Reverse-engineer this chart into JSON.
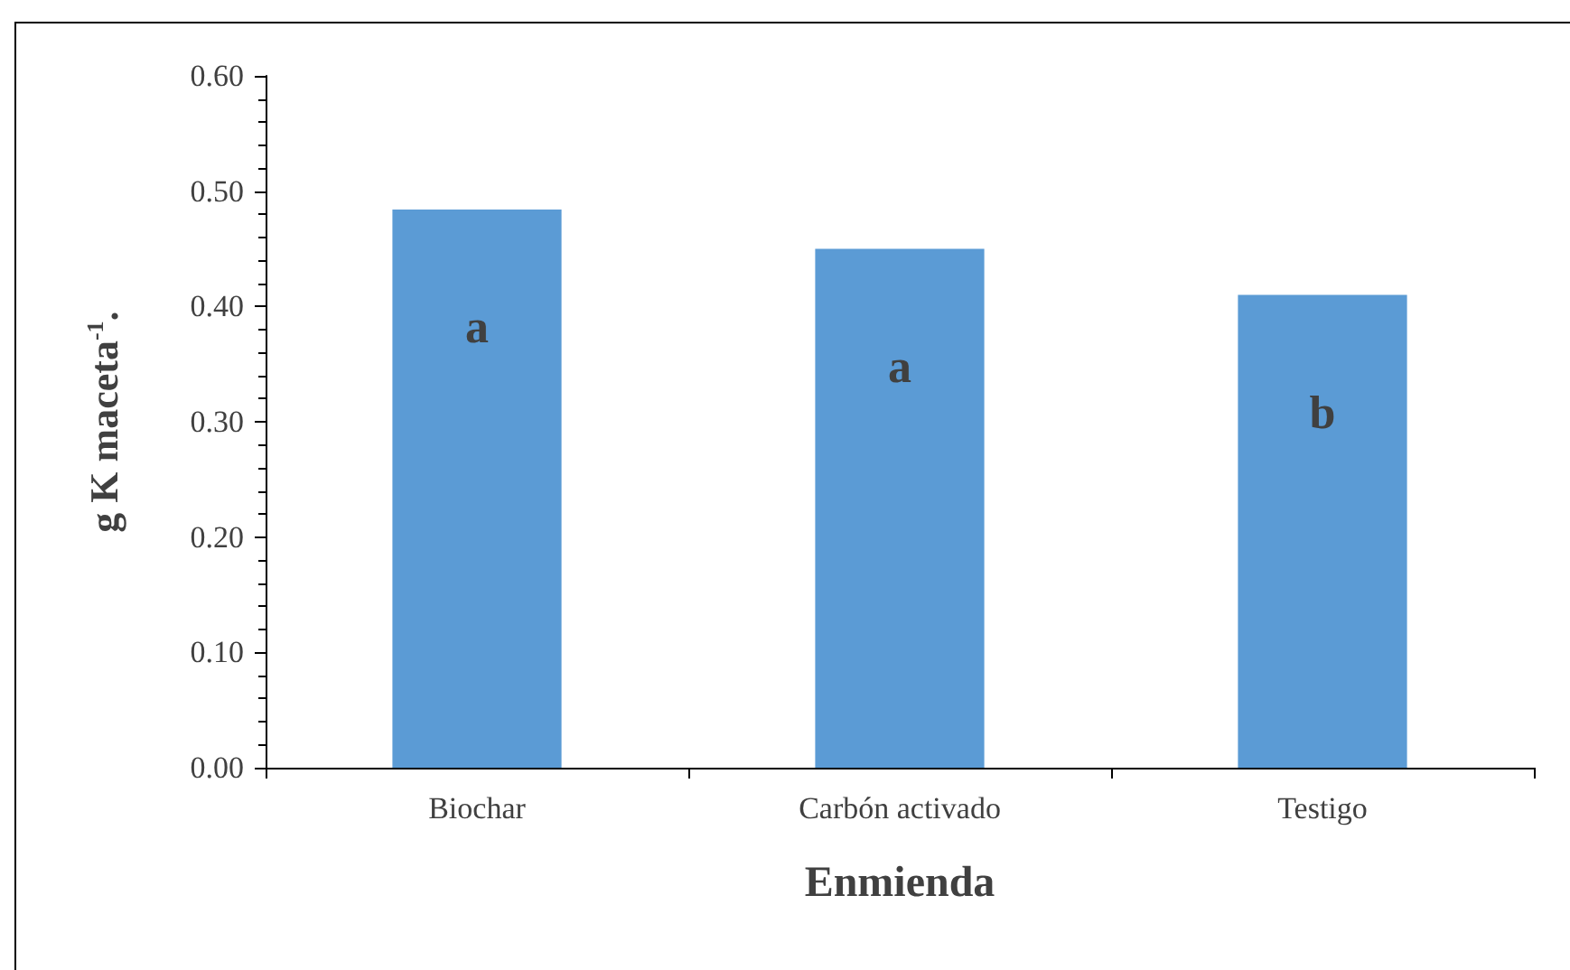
{
  "chart_data": {
    "type": "bar",
    "xlabel": "Enmienda",
    "ylabel": "g K maceta$^{-1}$.",
    "categories": [
      "Biochar",
      "Carbón activado",
      "Testigo"
    ],
    "values": [
      0.484,
      0.45,
      0.41
    ],
    "color": "#5b9bd5",
    "ylim": [
      0,
      0.6
    ],
    "yticks": [
      {
        "value": 0,
        "label": "0.00"
      },
      {
        "value": 0.1,
        "label": "0.10"
      },
      {
        "value": 0.2,
        "label": "0.20"
      },
      {
        "value": 0.3,
        "label": "0.30"
      },
      {
        "value": 0.4,
        "label": "0.40"
      },
      {
        "value": 0.5,
        "label": "0.50"
      },
      {
        "value": 0.6,
        "label": "0.60"
      }
    ],
    "grid": false,
    "annotations": [
      "a",
      "a",
      "b"
    ]
  }
}
